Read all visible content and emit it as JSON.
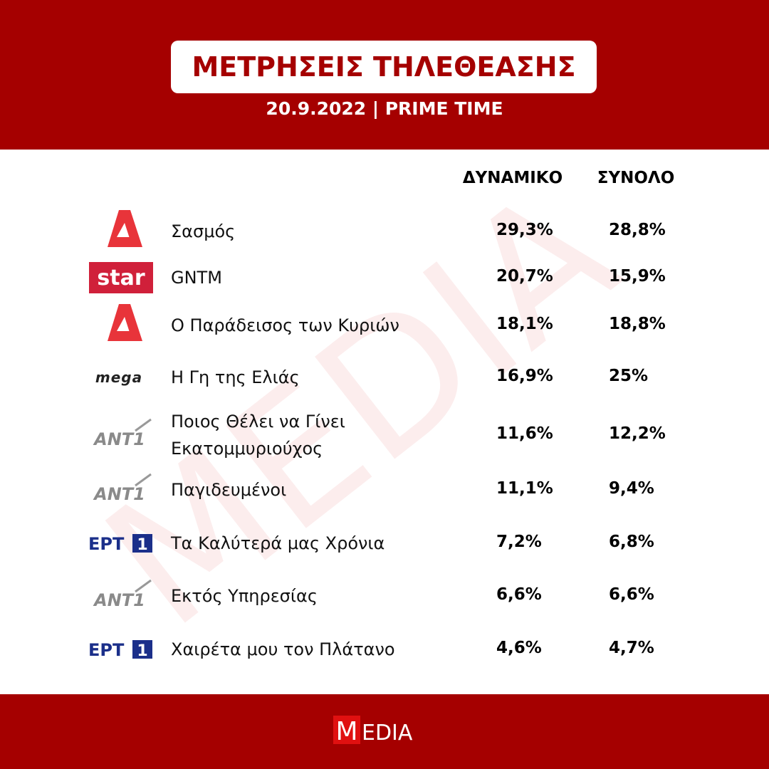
{
  "header": {
    "title": "ΜΕΤΡΗΣΕΙΣ ΤΗΛΕΘΕΑΣΗΣ",
    "subtitle": "20.9.2022 | PRIME TIME"
  },
  "watermark": "MEDIA",
  "table": {
    "columns": [
      "ΔΥΝΑΜΙΚΟ",
      "ΣΥΝΟΛΟ"
    ],
    "rows": [
      {
        "name": "Σασμός",
        "values": [
          "29,3%",
          "28,8%"
        ]
      },
      {
        "logo": "star",
        "name": "GNTM",
        "values": [
          "20,7%",
          "15,9%"
        ]
      },
      {
        "name": "Ο Παράδεισος των Κυριών",
        "values": [
          "18,1%",
          "18,8%"
        ]
      },
      {
        "logo": "mega",
        "name": "Η Γη της Ελιάς",
        "values": [
          "16,9%",
          "25%"
        ]
      },
      {
        "logo": "ANT1",
        "name": [
          "Ποιος Θέλει να Γίνει",
          "Εκατομμυριούχος"
        ],
        "values": [
          "11,6%",
          "12,2%"
        ]
      },
      {
        "logo": "ANT1",
        "name": "Παγιδευμένοι",
        "values": [
          "11,1%",
          "9,4%"
        ]
      },
      {
        "logo": [
          "ΕΡΤ",
          "1"
        ],
        "name": "Τα Καλύτερά μας Χρόνια",
        "values": [
          "7,2%",
          "6,8%"
        ]
      },
      {
        "logo": "ANT1",
        "name": "Εκτός Υπηρεσίας",
        "values": [
          "6,6%",
          "6,6%"
        ]
      },
      {
        "logo": [
          "ΕΡΤ",
          "1"
        ],
        "name": "Χαιρέτα μου τον Πλάτανο",
        "values": [
          "4,6%",
          "4,7%"
        ]
      }
    ]
  },
  "footer": {
    "logo": [
      "M",
      "EDIA"
    ]
  }
}
